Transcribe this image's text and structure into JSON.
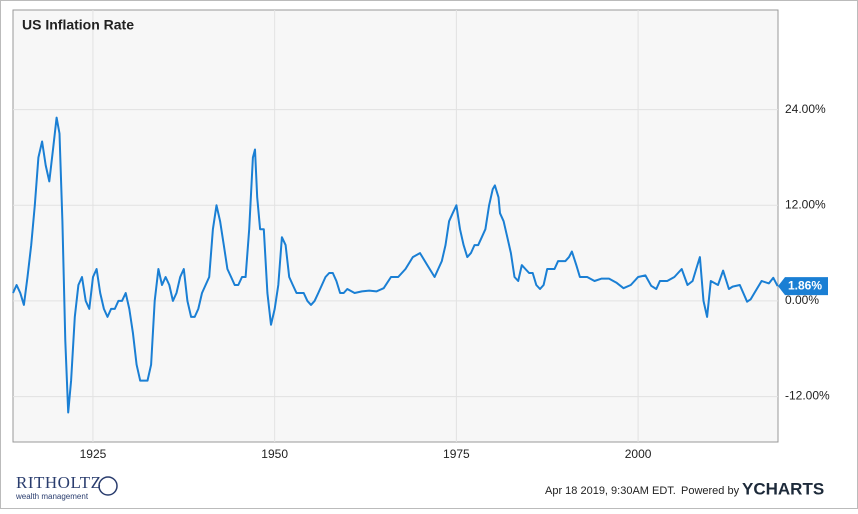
{
  "chart_data": {
    "type": "line",
    "title": "US Inflation Rate",
    "x": [
      1914.0,
      1914.5,
      1915.0,
      1915.5,
      1916.0,
      1916.5,
      1917.0,
      1917.5,
      1918.0,
      1918.5,
      1919.0,
      1919.5,
      1920.0,
      1920.4,
      1920.8,
      1921.2,
      1921.6,
      1922.0,
      1922.5,
      1923.0,
      1923.5,
      1924.0,
      1924.5,
      1925.0,
      1925.5,
      1926.0,
      1926.5,
      1927.0,
      1927.5,
      1928.0,
      1928.5,
      1929.0,
      1929.5,
      1930.0,
      1930.5,
      1931.0,
      1931.5,
      1932.0,
      1932.5,
      1933.0,
      1933.5,
      1934.0,
      1934.5,
      1935.0,
      1935.5,
      1936.0,
      1936.5,
      1937.0,
      1937.5,
      1938.0,
      1938.5,
      1939.0,
      1939.5,
      1940.0,
      1940.5,
      1941.0,
      1941.5,
      1942.0,
      1942.5,
      1943.0,
      1943.5,
      1944.0,
      1944.5,
      1945.0,
      1945.5,
      1946.0,
      1946.5,
      1947.0,
      1947.3,
      1947.6,
      1948.0,
      1948.5,
      1949.0,
      1949.5,
      1950.0,
      1950.5,
      1951.0,
      1951.5,
      1952.0,
      1952.5,
      1953.0,
      1953.5,
      1954.0,
      1954.5,
      1955.0,
      1955.5,
      1956.0,
      1956.5,
      1957.0,
      1957.5,
      1958.0,
      1958.5,
      1959.0,
      1959.5,
      1960.0,
      1961.0,
      1962.0,
      1963.0,
      1964.0,
      1965.0,
      1966.0,
      1967.0,
      1968.0,
      1969.0,
      1970.0,
      1971.0,
      1972.0,
      1973.0,
      1973.5,
      1974.0,
      1974.5,
      1975.0,
      1975.5,
      1976.0,
      1976.5,
      1977.0,
      1977.5,
      1978.0,
      1978.5,
      1979.0,
      1979.5,
      1980.0,
      1980.3,
      1980.8,
      1981.0,
      1981.5,
      1982.0,
      1982.5,
      1983.0,
      1983.5,
      1984.0,
      1984.5,
      1985.0,
      1985.5,
      1986.0,
      1986.5,
      1987.0,
      1987.5,
      1988.0,
      1988.5,
      1989.0,
      1989.5,
      1990.0,
      1990.5,
      1990.9,
      1991.5,
      1992.0,
      1993.0,
      1994.0,
      1995.0,
      1996.0,
      1997.0,
      1998.0,
      1999.0,
      2000.0,
      2001.0,
      2001.8,
      2002.5,
      2003.0,
      2004.0,
      2005.0,
      2006.0,
      2006.8,
      2007.5,
      2008.0,
      2008.5,
      2009.0,
      2009.5,
      2010.0,
      2011.0,
      2011.7,
      2012.5,
      2013.0,
      2014.0,
      2015.0,
      2015.5,
      2016.0,
      2017.0,
      2018.0,
      2018.6,
      2019.2
    ],
    "series": [
      {
        "color": "#1a7fd4",
        "values": [
          1.0,
          2.0,
          1.0,
          -0.5,
          3,
          7,
          12,
          18,
          20,
          17,
          15,
          19,
          23,
          21,
          10,
          -5,
          -14,
          -10,
          -2,
          2,
          3,
          0,
          -1,
          3,
          4,
          1,
          -1,
          -2,
          -1,
          -1,
          0,
          0,
          1,
          -1,
          -4,
          -8,
          -10,
          -10,
          -10,
          -8,
          0,
          4,
          2,
          3,
          2,
          0,
          1,
          3,
          4,
          0,
          -2,
          -2,
          -1,
          1,
          2,
          3,
          9,
          12,
          10,
          7,
          4,
          3,
          2,
          2,
          3,
          3,
          9,
          18,
          19,
          13,
          9,
          9,
          1,
          -3,
          -1,
          2,
          8,
          7,
          3,
          2,
          1,
          1,
          1,
          0,
          -0.5,
          0,
          1,
          2,
          3,
          3.5,
          3.5,
          2.5,
          1,
          1,
          1.5,
          1,
          1.2,
          1.3,
          1.2,
          1.6,
          3,
          3,
          4,
          5.5,
          6,
          4.5,
          3,
          5,
          7,
          10,
          11,
          12,
          9,
          7,
          5.5,
          6,
          7,
          7,
          8,
          9,
          12,
          14,
          14.5,
          13,
          11,
          10,
          8,
          6,
          3,
          2.5,
          4.5,
          4,
          3.5,
          3.5,
          2,
          1.5,
          2,
          4,
          4,
          4,
          5,
          5,
          5,
          5.5,
          6.2,
          4.5,
          3,
          3,
          2.5,
          2.8,
          2.8,
          2.3,
          1.6,
          2,
          3,
          3.2,
          1.9,
          1.5,
          2.5,
          2.5,
          3,
          4,
          2,
          2.5,
          4,
          5.5,
          0,
          -2,
          2.5,
          2,
          3.8,
          1.5,
          1.8,
          2,
          -0.1,
          0.2,
          1,
          2.5,
          2.2,
          2.9,
          1.86
        ]
      }
    ],
    "annotations": [
      {
        "value": 1.86,
        "label": "1.86%"
      }
    ],
    "xlim": [
      1914.0,
      2019.25
    ],
    "xticks": [
      1925,
      1950,
      1975,
      2000
    ],
    "ylim": [
      -17.7,
      36.5
    ],
    "yticks": [
      {
        "value": -12,
        "label": "-12.00%"
      },
      {
        "value": 0,
        "label": "0.00%"
      },
      {
        "value": 12,
        "label": "12.00%"
      },
      {
        "value": 24,
        "label": "24.00%"
      }
    ],
    "grid": true,
    "footer": {
      "timestamp": "Apr 18 2019, 9:30AM EDT.",
      "powered": "Powered by",
      "brand": "YCHARTS",
      "logo": "RITHOLTZ",
      "logo_sub": "wealth management"
    }
  }
}
